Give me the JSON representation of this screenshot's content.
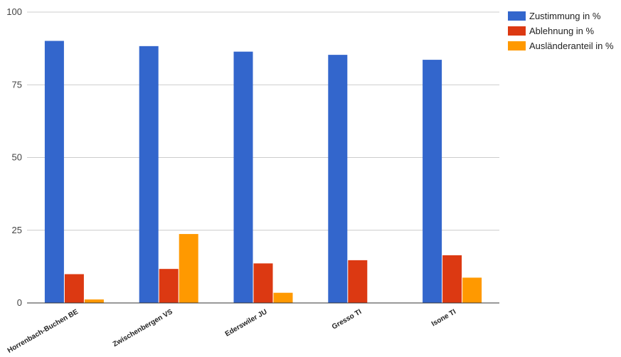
{
  "chart_data": {
    "type": "bar",
    "categories": [
      "Horrenbach-Buchen BE",
      "Zwischenbergen VS",
      "Ederswiler JU",
      "Gresso TI",
      "Isone TI"
    ],
    "series": [
      {
        "name": "Zustimmung in %",
        "color": "#3366cc",
        "values": [
          90.1,
          88.3,
          86.4,
          85.3,
          83.6
        ]
      },
      {
        "name": "Ablehnung in %",
        "color": "#dc3912",
        "values": [
          9.9,
          11.7,
          13.6,
          14.7,
          16.4
        ]
      },
      {
        "name": "Ausländeranteil in %",
        "color": "#ff9900",
        "values": [
          1.2,
          23.7,
          3.5,
          0,
          8.7
        ]
      }
    ],
    "ylim": [
      0,
      100
    ],
    "yticks": [
      "0",
      "25",
      "50",
      "75",
      "100"
    ],
    "grid": true,
    "legend_position": "right",
    "title": "",
    "xlabel": "",
    "ylabel": ""
  }
}
